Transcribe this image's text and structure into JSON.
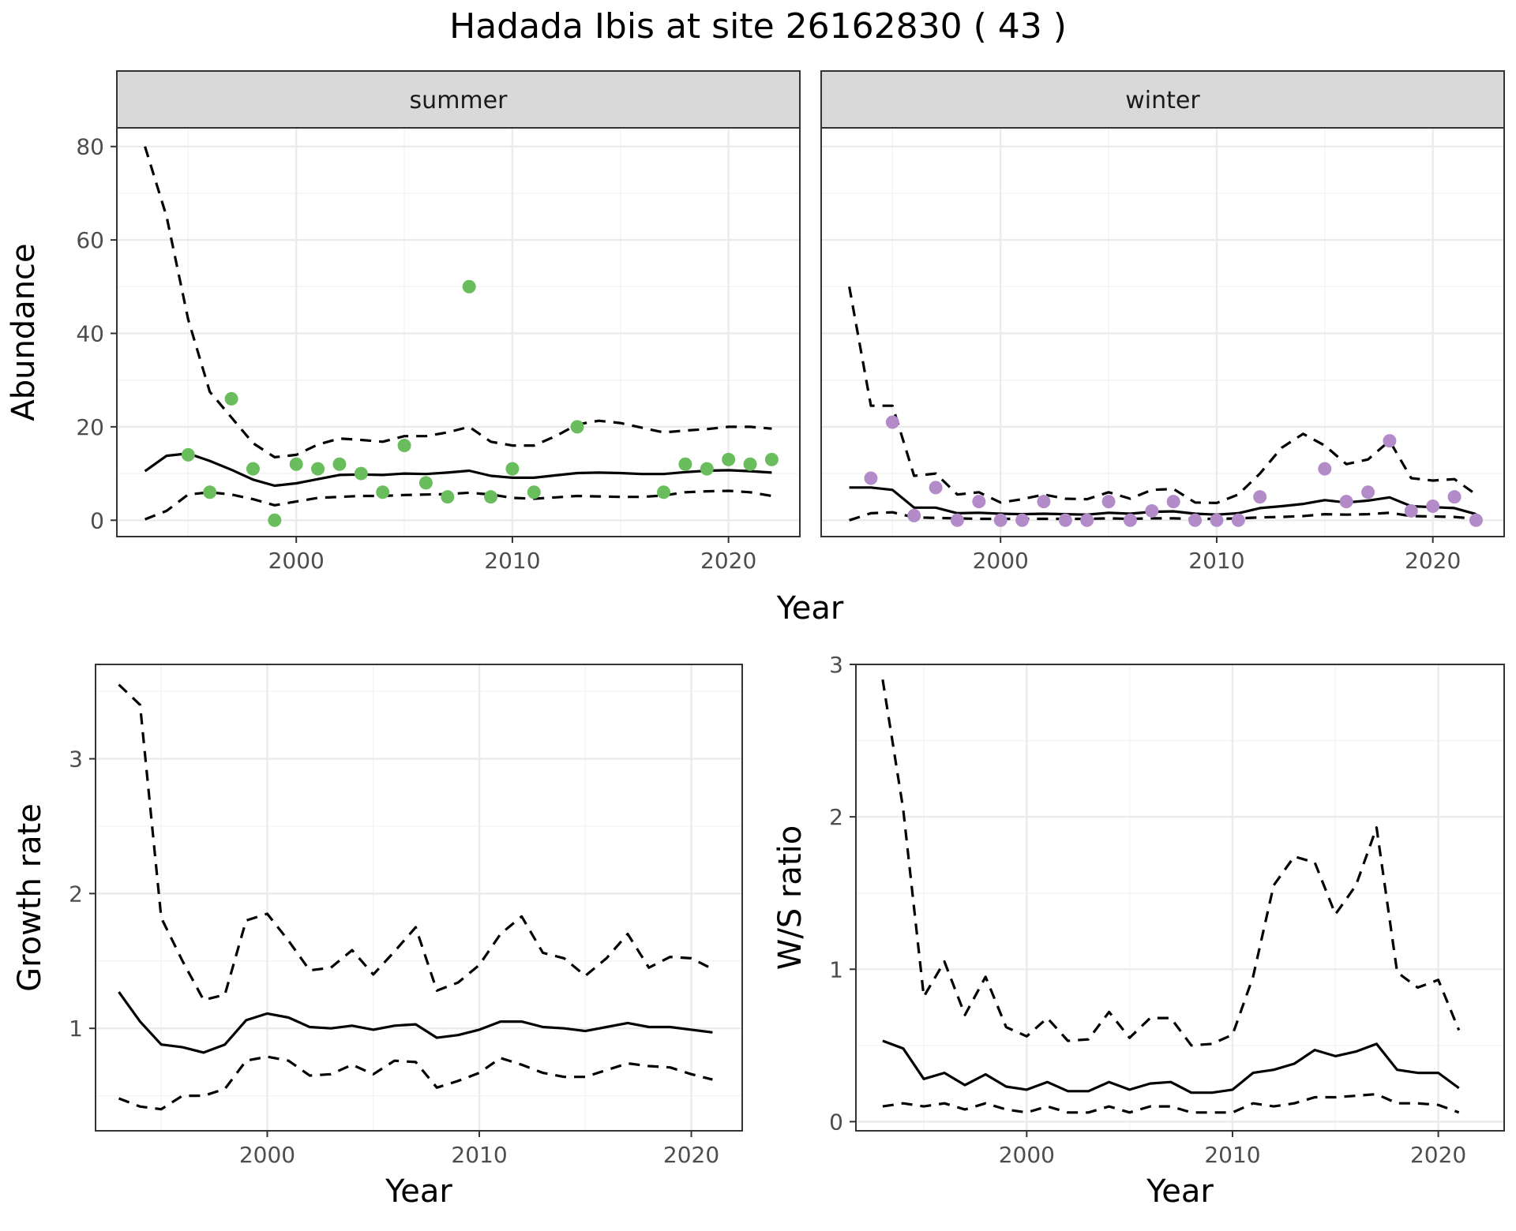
{
  "title": "Hadada Ibis at site 26162830 ( 43 )",
  "colors": {
    "summer_points": "#6ABD5C",
    "winter_points": "#B38BC9",
    "lines": "#000000",
    "strip": "#D9D9D9"
  },
  "chart_data": [
    {
      "type": "scatter",
      "panel": "summer",
      "strip_label": "summer",
      "xlabel": "Year",
      "ylabel": "Abundance",
      "xlim": [
        1991.7,
        2023.3
      ],
      "ylim": [
        -3.5,
        84
      ],
      "xticks": [
        2000,
        2010,
        2020
      ],
      "yticks": [
        0,
        20,
        40,
        60,
        80
      ],
      "grid": true,
      "years": [
        1993,
        1994,
        1995,
        1996,
        1997,
        1998,
        1999,
        2000,
        2001,
        2002,
        2003,
        2004,
        2005,
        2006,
        2007,
        2008,
        2009,
        2010,
        2011,
        2012,
        2013,
        2014,
        2015,
        2016,
        2017,
        2018,
        2019,
        2020,
        2021,
        2022
      ],
      "median": [
        10.5,
        13.8,
        14.3,
        12.7,
        10.8,
        8.7,
        7.4,
        7.9,
        8.8,
        9.7,
        9.8,
        9.7,
        10.0,
        9.9,
        10.2,
        10.6,
        9.5,
        9.1,
        9.1,
        9.6,
        10.1,
        10.2,
        10.1,
        9.9,
        9.9,
        10.3,
        10.6,
        10.7,
        10.5,
        10.2
      ],
      "lower": [
        0.2,
        2.0,
        5.5,
        6.0,
        5.5,
        4.5,
        3.2,
        4.0,
        4.8,
        5.0,
        5.2,
        5.2,
        5.4,
        5.5,
        5.6,
        5.9,
        5.5,
        4.8,
        4.6,
        4.9,
        5.2,
        5.1,
        5.0,
        5.0,
        5.3,
        6.0,
        6.2,
        6.3,
        6.0,
        5.2
      ],
      "upper": [
        80.0,
        65.0,
        43.0,
        27.5,
        22.0,
        16.5,
        13.5,
        14.0,
        16.2,
        17.5,
        17.2,
        16.8,
        18.0,
        18.0,
        18.8,
        20.0,
        16.8,
        16.0,
        16.0,
        18.0,
        20.5,
        21.3,
        20.8,
        19.8,
        18.8,
        19.2,
        19.5,
        20.0,
        20.0,
        19.6
      ],
      "points": [
        {
          "x": 1995,
          "y": 14
        },
        {
          "x": 1996,
          "y": 6
        },
        {
          "x": 1997,
          "y": 26
        },
        {
          "x": 1998,
          "y": 11
        },
        {
          "x": 1999,
          "y": 0
        },
        {
          "x": 2000,
          "y": 12
        },
        {
          "x": 2001,
          "y": 11
        },
        {
          "x": 2002,
          "y": 12
        },
        {
          "x": 2003,
          "y": 10
        },
        {
          "x": 2004,
          "y": 6
        },
        {
          "x": 2005,
          "y": 16
        },
        {
          "x": 2006,
          "y": 8
        },
        {
          "x": 2007,
          "y": 5
        },
        {
          "x": 2008,
          "y": 50
        },
        {
          "x": 2009,
          "y": 5
        },
        {
          "x": 2010,
          "y": 11
        },
        {
          "x": 2011,
          "y": 6
        },
        {
          "x": 2013,
          "y": 20
        },
        {
          "x": 2017,
          "y": 6
        },
        {
          "x": 2018,
          "y": 12
        },
        {
          "x": 2019,
          "y": 11
        },
        {
          "x": 2020,
          "y": 13
        },
        {
          "x": 2021,
          "y": 12
        },
        {
          "x": 2022,
          "y": 13
        }
      ]
    },
    {
      "type": "scatter",
      "panel": "winter",
      "strip_label": "winter",
      "xlabel": "Year",
      "ylabel": "",
      "xlim": [
        1991.7,
        2023.3
      ],
      "ylim": [
        -3.5,
        84
      ],
      "xticks": [
        2000,
        2010,
        2020
      ],
      "yticks": [
        0,
        20,
        40,
        60,
        80
      ],
      "grid": true,
      "years": [
        1993,
        1994,
        1995,
        1996,
        1997,
        1998,
        1999,
        2000,
        2001,
        2002,
        2003,
        2004,
        2005,
        2006,
        2007,
        2008,
        2009,
        2010,
        2011,
        2012,
        2013,
        2014,
        2015,
        2016,
        2017,
        2018,
        2019,
        2020,
        2021,
        2022
      ],
      "median": [
        7.0,
        7.0,
        6.5,
        2.7,
        2.7,
        1.5,
        1.6,
        1.4,
        1.3,
        1.4,
        1.3,
        1.2,
        1.6,
        1.4,
        1.8,
        1.9,
        1.4,
        1.2,
        1.5,
        2.6,
        3.0,
        3.5,
        4.3,
        3.8,
        4.2,
        4.9,
        3.0,
        2.8,
        2.6,
        1.3
      ],
      "lower": [
        0.0,
        1.5,
        1.7,
        0.6,
        0.5,
        0.4,
        0.3,
        0.3,
        0.3,
        0.3,
        0.3,
        0.3,
        0.4,
        0.3,
        0.4,
        0.4,
        0.3,
        0.3,
        0.4,
        0.6,
        0.7,
        0.9,
        1.3,
        1.2,
        1.3,
        1.6,
        0.9,
        0.8,
        0.7,
        0.3
      ],
      "upper": [
        50.0,
        24.5,
        24.5,
        9.5,
        10.0,
        5.5,
        6.0,
        3.8,
        4.5,
        5.5,
        4.6,
        4.5,
        6.0,
        4.6,
        6.5,
        6.7,
        3.8,
        3.7,
        5.5,
        10.0,
        15.5,
        18.5,
        16.0,
        12.0,
        13.0,
        17.0,
        9.0,
        8.5,
        8.8,
        5.5
      ],
      "points": [
        {
          "x": 1994,
          "y": 9
        },
        {
          "x": 1995,
          "y": 21
        },
        {
          "x": 1996,
          "y": 1
        },
        {
          "x": 1997,
          "y": 7
        },
        {
          "x": 1998,
          "y": 0
        },
        {
          "x": 1999,
          "y": 4
        },
        {
          "x": 2000,
          "y": 0
        },
        {
          "x": 2001,
          "y": 0
        },
        {
          "x": 2002,
          "y": 4
        },
        {
          "x": 2003,
          "y": 0
        },
        {
          "x": 2004,
          "y": 0
        },
        {
          "x": 2005,
          "y": 4
        },
        {
          "x": 2006,
          "y": 0
        },
        {
          "x": 2007,
          "y": 2
        },
        {
          "x": 2008,
          "y": 4
        },
        {
          "x": 2009,
          "y": 0
        },
        {
          "x": 2010,
          "y": 0
        },
        {
          "x": 2011,
          "y": 0
        },
        {
          "x": 2012,
          "y": 5
        },
        {
          "x": 2015,
          "y": 11
        },
        {
          "x": 2016,
          "y": 4
        },
        {
          "x": 2017,
          "y": 6
        },
        {
          "x": 2018,
          "y": 17
        },
        {
          "x": 2019,
          "y": 2
        },
        {
          "x": 2020,
          "y": 3
        },
        {
          "x": 2021,
          "y": 5
        },
        {
          "x": 2022,
          "y": 0
        }
      ]
    },
    {
      "type": "line",
      "panel": "growth",
      "xlabel": "Year",
      "ylabel": "Growth rate",
      "xlim": [
        1991.9,
        2022.4
      ],
      "ylim": [
        0.24,
        3.7
      ],
      "xticks": [
        2000,
        2010,
        2020
      ],
      "yticks": [
        1,
        2,
        3
      ],
      "grid": true,
      "years": [
        1993,
        1994,
        1995,
        1996,
        1997,
        1998,
        1999,
        2000,
        2001,
        2002,
        2003,
        2004,
        2005,
        2006,
        2007,
        2008,
        2009,
        2010,
        2011,
        2012,
        2013,
        2014,
        2015,
        2016,
        2017,
        2018,
        2019,
        2020,
        2021
      ],
      "median": [
        1.27,
        1.05,
        0.88,
        0.86,
        0.82,
        0.88,
        1.06,
        1.11,
        1.08,
        1.01,
        1.0,
        1.02,
        0.99,
        1.02,
        1.03,
        0.93,
        0.95,
        0.99,
        1.05,
        1.05,
        1.01,
        1.0,
        0.98,
        1.01,
        1.04,
        1.01,
        1.01,
        0.99,
        0.97
      ],
      "lower": [
        0.48,
        0.42,
        0.4,
        0.5,
        0.5,
        0.55,
        0.76,
        0.79,
        0.76,
        0.65,
        0.66,
        0.73,
        0.66,
        0.76,
        0.75,
        0.56,
        0.61,
        0.67,
        0.78,
        0.73,
        0.67,
        0.64,
        0.64,
        0.69,
        0.74,
        0.72,
        0.71,
        0.66,
        0.62
      ],
      "upper": [
        3.55,
        3.4,
        1.82,
        1.5,
        1.21,
        1.25,
        1.8,
        1.85,
        1.65,
        1.43,
        1.45,
        1.58,
        1.4,
        1.57,
        1.75,
        1.28,
        1.34,
        1.47,
        1.7,
        1.83,
        1.56,
        1.52,
        1.39,
        1.52,
        1.7,
        1.45,
        1.53,
        1.52,
        1.44
      ]
    },
    {
      "type": "line",
      "panel": "ws_ratio",
      "xlabel": "Year",
      "ylabel": "W/S ratio",
      "xlim": [
        1991.7,
        2023.2
      ],
      "ylim": [
        -0.06,
        3.0
      ],
      "xticks": [
        2000,
        2010,
        2020
      ],
      "yticks": [
        0,
        1,
        2,
        3
      ],
      "grid": true,
      "years": [
        1993,
        1994,
        1995,
        1996,
        1997,
        1998,
        1999,
        2000,
        2001,
        2002,
        2003,
        2004,
        2005,
        2006,
        2007,
        2008,
        2009,
        2010,
        2011,
        2012,
        2013,
        2014,
        2015,
        2016,
        2017,
        2018,
        2019,
        2020,
        2021
      ],
      "median": [
        0.53,
        0.48,
        0.28,
        0.32,
        0.24,
        0.31,
        0.23,
        0.21,
        0.26,
        0.2,
        0.2,
        0.26,
        0.21,
        0.25,
        0.26,
        0.19,
        0.19,
        0.21,
        0.32,
        0.34,
        0.38,
        0.47,
        0.43,
        0.46,
        0.51,
        0.34,
        0.32,
        0.32,
        0.22
      ],
      "lower": [
        0.1,
        0.12,
        0.1,
        0.12,
        0.08,
        0.12,
        0.08,
        0.06,
        0.1,
        0.06,
        0.06,
        0.1,
        0.06,
        0.1,
        0.1,
        0.06,
        0.06,
        0.06,
        0.12,
        0.1,
        0.12,
        0.16,
        0.16,
        0.17,
        0.18,
        0.12,
        0.12,
        0.11,
        0.06
      ],
      "upper": [
        2.9,
        2.05,
        0.82,
        1.05,
        0.7,
        0.95,
        0.62,
        0.56,
        0.68,
        0.53,
        0.54,
        0.72,
        0.55,
        0.68,
        0.68,
        0.5,
        0.51,
        0.57,
        0.95,
        1.55,
        1.74,
        1.7,
        1.36,
        1.55,
        1.93,
        0.98,
        0.88,
        0.93,
        0.6
      ]
    }
  ]
}
